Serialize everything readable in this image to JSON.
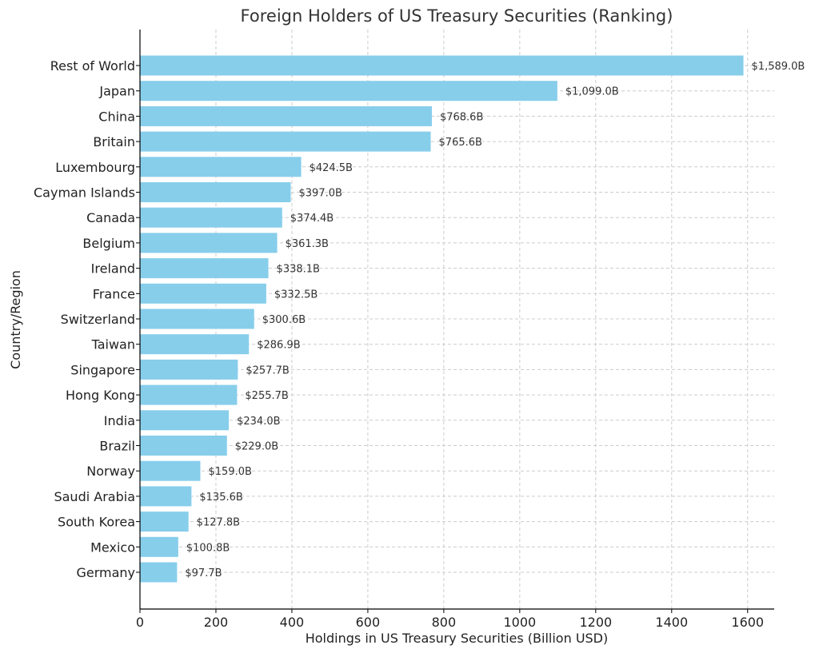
{
  "chart_data": {
    "type": "bar",
    "orientation": "horizontal",
    "title": "Foreign Holders of US Treasury Securities (Ranking)",
    "xlabel": "Holdings in US Treasury Securities (Billion USD)",
    "ylabel": "Country/Region",
    "xlim": [
      0,
      1670
    ],
    "xticks": [
      0,
      200,
      400,
      600,
      800,
      1000,
      1200,
      1400,
      1600
    ],
    "grid": true,
    "bar_color": "#87CEEB",
    "categories": [
      "Rest of World",
      "Japan",
      "China",
      "Britain",
      "Luxembourg",
      "Cayman Islands",
      "Canada",
      "Belgium",
      "Ireland",
      "France",
      "Switzerland",
      "Taiwan",
      "Singapore",
      "Hong Kong",
      "India",
      "Brazil",
      "Norway",
      "Saudi Arabia",
      "South Korea",
      "Mexico",
      "Germany"
    ],
    "values": [
      1589.0,
      1099.0,
      768.6,
      765.6,
      424.5,
      397.0,
      374.4,
      361.3,
      338.1,
      332.5,
      300.6,
      286.9,
      257.7,
      255.7,
      234.0,
      229.0,
      159.0,
      135.6,
      127.8,
      100.8,
      97.7
    ],
    "value_labels": [
      "$1,589.0B",
      "$1,099.0B",
      "$768.6B",
      "$765.6B",
      "$424.5B",
      "$397.0B",
      "$374.4B",
      "$361.3B",
      "$338.1B",
      "$332.5B",
      "$300.6B",
      "$286.9B",
      "$257.7B",
      "$255.7B",
      "$234.0B",
      "$229.0B",
      "$159.0B",
      "$135.6B",
      "$127.8B",
      "$100.8B",
      "$97.7B"
    ]
  }
}
